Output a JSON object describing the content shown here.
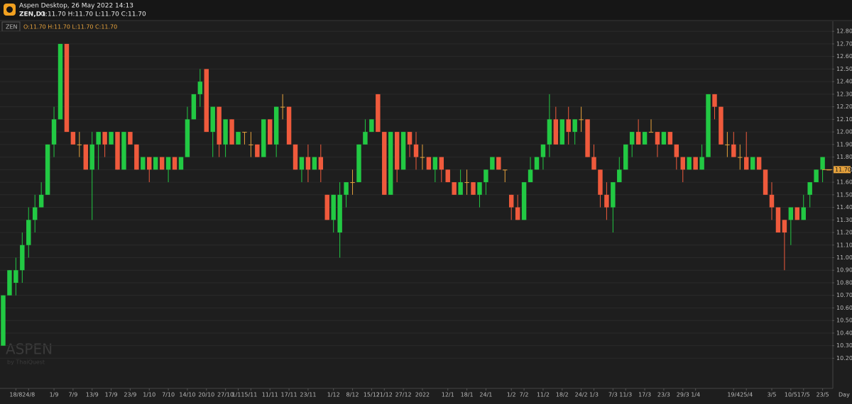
{
  "header": {
    "title": "Aspen Desktop, 26 May 2022 14:13",
    "symbol": "ZEN,D1",
    "ohlc_text": "O:11.70 H:11.70 L:11.70 C:11.70"
  },
  "chart_data": {
    "type": "candlestick",
    "symbol_label": "ZEN",
    "legend_text": "O:11.70 H:11.70 L:11.70 C:11.70",
    "watermark": "ASPEN",
    "watermark_sub": "by ThaiQuest",
    "period": "Day",
    "up_color": "#22c943",
    "down_color": "#ef5a3c",
    "flat_color": "#e6a23c",
    "last_price": {
      "value": 11.7,
      "label": "11.70"
    },
    "ylim": [
      9.96,
      12.88
    ],
    "yticks": [
      {
        "value": 10.2,
        "label": "10.20"
      },
      {
        "value": 10.3,
        "label": "10.30"
      },
      {
        "value": 10.4,
        "label": "10.40"
      },
      {
        "value": 10.5,
        "label": "10.50"
      },
      {
        "value": 10.6,
        "label": "10.60"
      },
      {
        "value": 10.7,
        "label": "10.70"
      },
      {
        "value": 10.8,
        "label": "10.80"
      },
      {
        "value": 10.9,
        "label": "10.90"
      },
      {
        "value": 11.0,
        "label": "11.00"
      },
      {
        "value": 11.1,
        "label": "11.10"
      },
      {
        "value": 11.2,
        "label": "11.20"
      },
      {
        "value": 11.3,
        "label": "11.30"
      },
      {
        "value": 11.4,
        "label": "11.40"
      },
      {
        "value": 11.5,
        "label": "11.50"
      },
      {
        "value": 11.6,
        "label": "11.60"
      },
      {
        "value": 11.7,
        "label": "11.70"
      },
      {
        "value": 11.8,
        "label": "11.80"
      },
      {
        "value": 11.9,
        "label": "11.90"
      },
      {
        "value": 12.0,
        "label": "12.00"
      },
      {
        "value": 12.1,
        "label": "12.10"
      },
      {
        "value": 12.2,
        "label": "12.20"
      },
      {
        "value": 12.3,
        "label": "12.30"
      },
      {
        "value": 12.4,
        "label": "12.40"
      },
      {
        "value": 12.5,
        "label": "12.50"
      },
      {
        "value": 12.6,
        "label": "12.60"
      },
      {
        "value": 12.7,
        "label": "12.70"
      },
      {
        "value": 12.8,
        "label": "12.80"
      }
    ],
    "categories": [
      null,
      null,
      "18/8",
      null,
      "24/8",
      null,
      null,
      null,
      "1/9",
      null,
      null,
      "7/9",
      null,
      null,
      "13/9",
      null,
      null,
      "17/9",
      null,
      null,
      "23/9",
      null,
      null,
      "1/10",
      null,
      null,
      "7/10",
      null,
      null,
      "14/10",
      null,
      null,
      "20/10",
      null,
      null,
      "27/10",
      null,
      "1/11",
      null,
      "5/11",
      null,
      null,
      "11/11",
      null,
      null,
      "17/11",
      null,
      null,
      "23/11",
      null,
      null,
      null,
      "1/12",
      null,
      null,
      "8/12",
      null,
      null,
      "15/12",
      null,
      "21/12",
      null,
      null,
      "27/12",
      null,
      null,
      "2022",
      null,
      null,
      null,
      "12/1",
      null,
      null,
      "18/1",
      null,
      null,
      "24/1",
      null,
      null,
      null,
      "1/2",
      null,
      "7/2",
      null,
      null,
      "11/2",
      null,
      null,
      "18/2",
      null,
      null,
      "24/2",
      null,
      "1/3",
      null,
      null,
      "7/3",
      null,
      "11/3",
      null,
      null,
      "17/3",
      null,
      null,
      "23/3",
      null,
      null,
      "29/3",
      null,
      "1/4",
      null,
      null,
      null,
      null,
      null,
      "19/4",
      null,
      "25/4",
      null,
      null,
      null,
      "3/5",
      null,
      null,
      "10/5",
      null,
      "17/5",
      null,
      null,
      "23/5",
      null
    ],
    "ohlc": [
      [
        10.3,
        10.7,
        10.3,
        10.7
      ],
      [
        10.7,
        10.9,
        10.7,
        10.9
      ],
      [
        10.8,
        11.0,
        10.7,
        10.9
      ],
      [
        10.9,
        11.2,
        10.8,
        11.1
      ],
      [
        11.1,
        11.4,
        11.0,
        11.3
      ],
      [
        11.3,
        11.5,
        11.2,
        11.4
      ],
      [
        11.4,
        11.6,
        11.4,
        11.5
      ],
      [
        11.5,
        11.9,
        11.5,
        11.9
      ],
      [
        11.9,
        12.2,
        11.8,
        12.1
      ],
      [
        12.1,
        12.7,
        12.1,
        12.7
      ],
      [
        12.7,
        12.7,
        12.0,
        12.0
      ],
      [
        12.0,
        12.0,
        11.9,
        11.9
      ],
      [
        11.9,
        12.0,
        11.8,
        11.9
      ],
      [
        11.9,
        11.9,
        11.7,
        11.7
      ],
      [
        11.7,
        12.0,
        11.3,
        11.9
      ],
      [
        11.9,
        12.0,
        11.7,
        12.0
      ],
      [
        12.0,
        12.0,
        11.8,
        11.9
      ],
      [
        11.9,
        12.0,
        11.9,
        12.0
      ],
      [
        12.0,
        12.0,
        11.7,
        11.7
      ],
      [
        11.7,
        12.0,
        11.7,
        12.0
      ],
      [
        12.0,
        12.0,
        11.9,
        11.9
      ],
      [
        11.9,
        11.9,
        11.7,
        11.7
      ],
      [
        11.7,
        11.8,
        11.7,
        11.8
      ],
      [
        11.8,
        11.8,
        11.6,
        11.7
      ],
      [
        11.7,
        11.8,
        11.7,
        11.8
      ],
      [
        11.8,
        11.8,
        11.7,
        11.7
      ],
      [
        11.7,
        11.8,
        11.6,
        11.8
      ],
      [
        11.8,
        11.8,
        11.7,
        11.7
      ],
      [
        11.7,
        11.8,
        11.7,
        11.8
      ],
      [
        11.8,
        12.2,
        11.8,
        12.1
      ],
      [
        12.1,
        12.3,
        12.1,
        12.3
      ],
      [
        12.3,
        12.5,
        12.2,
        12.4
      ],
      [
        12.5,
        12.5,
        12.0,
        12.0
      ],
      [
        12.0,
        12.2,
        11.8,
        12.2
      ],
      [
        12.2,
        12.2,
        11.8,
        11.9
      ],
      [
        11.9,
        12.1,
        11.8,
        12.1
      ],
      [
        12.1,
        12.1,
        11.9,
        11.9
      ],
      [
        11.9,
        12.0,
        11.9,
        12.0
      ],
      [
        12.0,
        12.0,
        11.9,
        12.0
      ],
      [
        11.9,
        12.0,
        11.8,
        11.9
      ],
      [
        11.9,
        11.9,
        11.8,
        11.8
      ],
      [
        11.8,
        12.1,
        11.8,
        12.1
      ],
      [
        12.1,
        12.1,
        11.9,
        11.9
      ],
      [
        11.9,
        12.2,
        11.8,
        12.2
      ],
      [
        12.2,
        12.3,
        12.1,
        12.2
      ],
      [
        12.2,
        12.2,
        11.9,
        11.9
      ],
      [
        11.9,
        11.9,
        11.7,
        11.7
      ],
      [
        11.7,
        11.8,
        11.6,
        11.8
      ],
      [
        11.8,
        11.9,
        11.6,
        11.7
      ],
      [
        11.7,
        11.8,
        11.7,
        11.8
      ],
      [
        11.8,
        11.9,
        11.6,
        11.7
      ],
      [
        11.5,
        11.5,
        11.3,
        11.3
      ],
      [
        11.3,
        11.5,
        11.2,
        11.5
      ],
      [
        11.2,
        11.6,
        11.0,
        11.5
      ],
      [
        11.5,
        11.6,
        11.4,
        11.6
      ],
      [
        11.6,
        11.7,
        11.5,
        11.6
      ],
      [
        11.6,
        11.9,
        11.6,
        11.9
      ],
      [
        11.9,
        12.1,
        11.9,
        12.0
      ],
      [
        12.0,
        12.1,
        12.0,
        12.1
      ],
      [
        12.3,
        12.3,
        12.0,
        12.0
      ],
      [
        12.0,
        12.0,
        11.5,
        11.5
      ],
      [
        11.5,
        12.0,
        11.5,
        12.0
      ],
      [
        12.0,
        12.0,
        11.6,
        11.7
      ],
      [
        11.7,
        12.0,
        11.7,
        12.0
      ],
      [
        12.0,
        12.0,
        11.8,
        11.9
      ],
      [
        11.9,
        12.0,
        11.7,
        11.8
      ],
      [
        11.8,
        11.9,
        11.7,
        11.8
      ],
      [
        11.8,
        11.8,
        11.7,
        11.7
      ],
      [
        11.7,
        11.8,
        11.6,
        11.8
      ],
      [
        11.8,
        11.8,
        11.6,
        11.7
      ],
      [
        11.7,
        11.7,
        11.6,
        11.6
      ],
      [
        11.6,
        11.6,
        11.5,
        11.5
      ],
      [
        11.5,
        11.7,
        11.5,
        11.6
      ],
      [
        11.6,
        11.7,
        11.5,
        11.6
      ],
      [
        11.6,
        11.6,
        11.5,
        11.5
      ],
      [
        11.5,
        11.6,
        11.4,
        11.6
      ],
      [
        11.6,
        11.7,
        11.5,
        11.7
      ],
      [
        11.7,
        11.8,
        11.7,
        11.8
      ],
      [
        11.8,
        11.8,
        11.7,
        11.7
      ],
      [
        11.7,
        11.7,
        11.6,
        11.7
      ],
      [
        11.5,
        11.5,
        11.3,
        11.4
      ],
      [
        11.4,
        11.5,
        11.3,
        11.3
      ],
      [
        11.3,
        11.6,
        11.3,
        11.6
      ],
      [
        11.6,
        11.8,
        11.6,
        11.7
      ],
      [
        11.7,
        11.8,
        11.7,
        11.8
      ],
      [
        11.8,
        11.9,
        11.7,
        11.9
      ],
      [
        11.9,
        12.3,
        11.8,
        12.1
      ],
      [
        12.1,
        12.2,
        11.9,
        11.9
      ],
      [
        11.9,
        12.1,
        11.9,
        12.1
      ],
      [
        12.1,
        12.2,
        11.9,
        12.0
      ],
      [
        12.0,
        12.1,
        11.9,
        12.1
      ],
      [
        12.1,
        12.2,
        12.0,
        12.1
      ],
      [
        12.1,
        12.1,
        11.8,
        11.8
      ],
      [
        11.8,
        11.9,
        11.7,
        11.7
      ],
      [
        11.7,
        11.7,
        11.4,
        11.5
      ],
      [
        11.5,
        11.6,
        11.3,
        11.4
      ],
      [
        11.4,
        11.6,
        11.2,
        11.6
      ],
      [
        11.6,
        11.8,
        11.6,
        11.7
      ],
      [
        11.7,
        11.9,
        11.7,
        11.9
      ],
      [
        11.9,
        12.0,
        11.8,
        12.0
      ],
      [
        12.0,
        12.1,
        11.9,
        11.9
      ],
      [
        11.9,
        12.0,
        11.9,
        12.0
      ],
      [
        12.0,
        12.1,
        12.0,
        12.0
      ],
      [
        12.0,
        12.0,
        11.8,
        11.9
      ],
      [
        11.9,
        12.0,
        11.9,
        12.0
      ],
      [
        12.0,
        12.0,
        11.9,
        11.9
      ],
      [
        11.9,
        11.9,
        11.7,
        11.8
      ],
      [
        11.8,
        11.8,
        11.6,
        11.7
      ],
      [
        11.7,
        11.8,
        11.7,
        11.8
      ],
      [
        11.8,
        11.8,
        11.7,
        11.7
      ],
      [
        11.7,
        11.9,
        11.7,
        11.8
      ],
      [
        11.8,
        12.3,
        11.8,
        12.3
      ],
      [
        12.3,
        12.3,
        12.1,
        12.2
      ],
      [
        12.2,
        12.2,
        11.9,
        11.9
      ],
      [
        11.9,
        12.0,
        11.8,
        11.9
      ],
      [
        11.9,
        12.0,
        11.8,
        11.8
      ],
      [
        11.8,
        11.9,
        11.7,
        11.8
      ],
      [
        11.8,
        12.0,
        11.7,
        11.7
      ],
      [
        11.7,
        11.8,
        11.7,
        11.8
      ],
      [
        11.8,
        11.8,
        11.7,
        11.7
      ],
      [
        11.7,
        11.7,
        11.5,
        11.5
      ],
      [
        11.5,
        11.6,
        11.3,
        11.4
      ],
      [
        11.4,
        11.4,
        11.2,
        11.2
      ],
      [
        11.3,
        11.3,
        10.9,
        11.2
      ],
      [
        11.3,
        11.4,
        11.1,
        11.4
      ],
      [
        11.4,
        11.4,
        11.3,
        11.3
      ],
      [
        11.3,
        11.5,
        11.3,
        11.4
      ],
      [
        11.5,
        11.6,
        11.4,
        11.6
      ],
      [
        11.6,
        11.7,
        11.6,
        11.7
      ],
      [
        11.7,
        11.8,
        11.6,
        11.8
      ],
      [
        11.7,
        11.7,
        11.7,
        11.7
      ]
    ]
  }
}
